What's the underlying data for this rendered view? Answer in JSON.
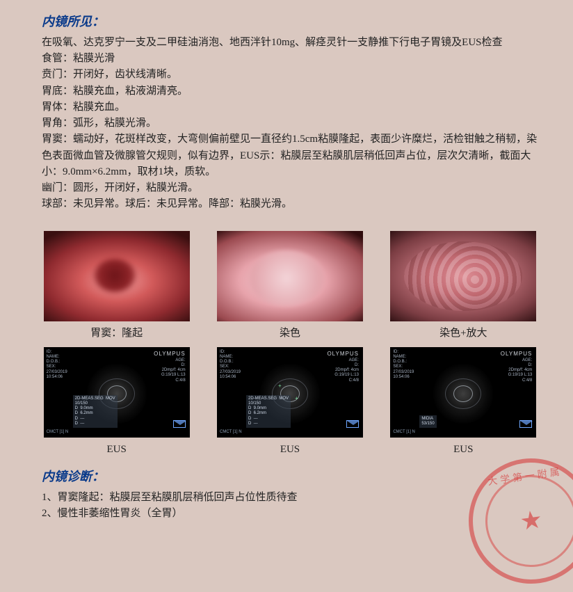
{
  "colors": {
    "page_bg": "#dac8c0",
    "heading": "#0a3a8a",
    "body_text": "#222222",
    "stamp": "#d63030",
    "eus_bg": "#000000",
    "eus_text": "#a9b4c4",
    "eus_accent": "#6fa7ff"
  },
  "typography": {
    "body_family": "SimSun / Songti",
    "body_size_pt": 11,
    "heading_size_pt": 14,
    "heading_weight": "bold",
    "heading_style": "italic"
  },
  "sections": {
    "findings_title": "内镜所见：",
    "diagnosis_title": "内镜诊断："
  },
  "findings": {
    "intro": "在吸氧、达克罗宁一支及二甲硅油消泡、地西泮针10mg、解痉灵针一支静推下行电子胃镜及EUS检查",
    "rows": [
      {
        "label": "食管：",
        "text": "粘膜光滑"
      },
      {
        "label": "贲门：",
        "text": "开闭好，齿状线清晰。"
      },
      {
        "label": "胃底：",
        "text": "粘膜充血，粘液湖清亮。"
      },
      {
        "label": "胃体：",
        "text": "粘膜充血。"
      },
      {
        "label": "胃角：",
        "text": "弧形，粘膜光滑。"
      }
    ],
    "antrum_label": "胃窦：",
    "antrum_text": "蠕动好，花斑样改变，大弯侧偏前壁见一直径约1.5cm粘膜隆起，表面少许糜烂，活检钳触之稍韧，染色表面微血管及微腺管欠规则，似有边界，EUS示：粘膜层至粘膜肌层稍低回声占位，层次欠清晰，截面大小：9.0mm×6.2mm，取材1块，质软。",
    "pylorus": {
      "label": "幽门：",
      "text": "圆形，开闭好，粘膜光滑。"
    },
    "bulb_line": "球部：未见异常。球后：未见异常。降部：粘膜光滑。"
  },
  "images": {
    "row1": [
      {
        "type": "endoscopy",
        "caption": "胃窦：隆起"
      },
      {
        "type": "endoscopy",
        "caption": "染色"
      },
      {
        "type": "endoscopy",
        "caption": "染色+放大"
      }
    ],
    "row2": [
      {
        "type": "eus",
        "caption": "EUS"
      },
      {
        "type": "eus",
        "caption": "EUS"
      },
      {
        "type": "eus",
        "caption": "EUS"
      }
    ],
    "eus_overlay": {
      "brand": "OLYMPUS",
      "meta_left": "ID:\nNAME:\nD.O.B.:\nSEX:\n27/03/2019\n10:54:06",
      "meta_right": "AGE:\nD:\n2Dmp/f: 4cm\nG:19/19 L:13\nC:4/8",
      "measure_1": "2D-MEAS.SEG  MOV\n10/150\nD  9.0mm\nD  6.2mm\nD  ---\nD  ---",
      "measure_2": "MIDIA\n53/150",
      "footer": "CMCT [1] N",
      "cross_value_mm": [
        9.0,
        6.2
      ]
    }
  },
  "diagnosis": {
    "items": [
      "1、胃窦隆起：粘膜层至粘膜肌层稍低回声占位性质待查",
      "2、慢性非萎缩性胃炎（全胃）"
    ]
  },
  "stamp": {
    "ring_text": "大学第一附属",
    "center_glyph": "★"
  }
}
